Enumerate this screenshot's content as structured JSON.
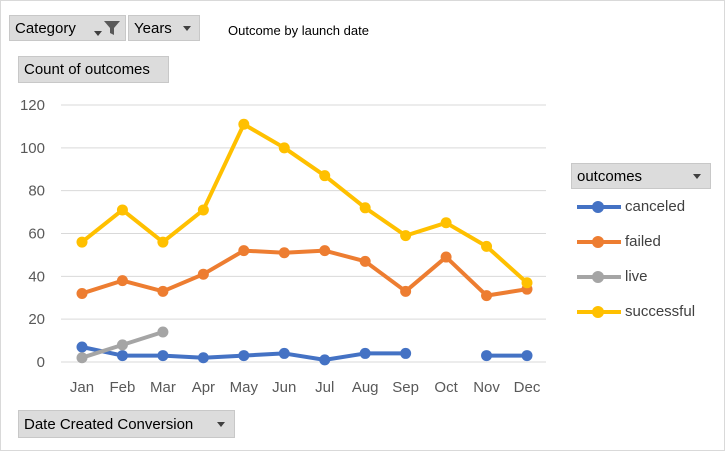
{
  "filters": {
    "category_label": "Category",
    "years_label": "Years",
    "icons": [
      "dropdown-arrow-icon",
      "filter-funnel-icon"
    ]
  },
  "values_button": {
    "label": "Count of outcomes"
  },
  "axis_button": {
    "label": "Date Created Conversion"
  },
  "legend_header": {
    "label": "outcomes"
  },
  "chart_data": {
    "type": "line",
    "title": "Outcome by launch date",
    "categories": [
      "Jan",
      "Feb",
      "Mar",
      "Apr",
      "May",
      "Jun",
      "Jul",
      "Aug",
      "Sep",
      "Oct",
      "Nov",
      "Dec"
    ],
    "ylim": [
      0,
      120
    ],
    "yticks": [
      0,
      20,
      40,
      60,
      80,
      100,
      120
    ],
    "grid": true,
    "legend_position": "right",
    "series": [
      {
        "name": "canceled",
        "color": "#4472c4",
        "values": [
          7,
          3,
          3,
          2,
          3,
          4,
          1,
          4,
          4,
          null,
          3,
          3
        ]
      },
      {
        "name": "failed",
        "color": "#ed7d31",
        "values": [
          32,
          38,
          33,
          41,
          52,
          51,
          52,
          47,
          33,
          49,
          31,
          34
        ]
      },
      {
        "name": "live",
        "color": "#a5a5a5",
        "values": [
          2,
          8,
          14,
          null,
          null,
          null,
          null,
          null,
          null,
          null,
          null,
          null
        ]
      },
      {
        "name": "successful",
        "color": "#ffc000",
        "values": [
          56,
          71,
          56,
          71,
          111,
          100,
          87,
          72,
          59,
          65,
          54,
          37
        ]
      }
    ]
  }
}
